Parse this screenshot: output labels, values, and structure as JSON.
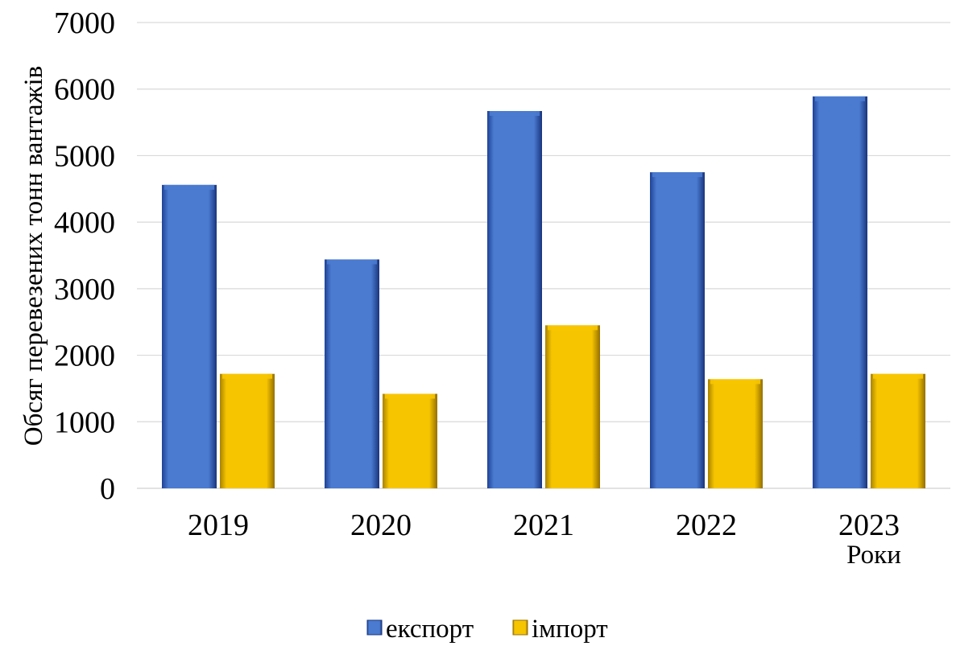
{
  "colors": {
    "export": "#4A7BD0",
    "import": "#F7C500",
    "grid": "#D9D9D9"
  },
  "chart_data": {
    "type": "bar",
    "title": "",
    "xlabel": "Роки",
    "ylabel": "Обсяг перевезених тонн вантажів",
    "categories": [
      "2019",
      "2020",
      "2021",
      "2022",
      "2023"
    ],
    "series": [
      {
        "name": "експорт",
        "values": [
          4560,
          3440,
          5670,
          4750,
          5890
        ]
      },
      {
        "name": "імпорт",
        "values": [
          1720,
          1420,
          2450,
          1640,
          1720
        ]
      }
    ],
    "ylim": [
      0,
      7000
    ],
    "yticks": [
      "0",
      "1000",
      "2000",
      "3000",
      "4000",
      "5000",
      "6000",
      "7000"
    ],
    "grid": true,
    "legend": "bottom"
  }
}
